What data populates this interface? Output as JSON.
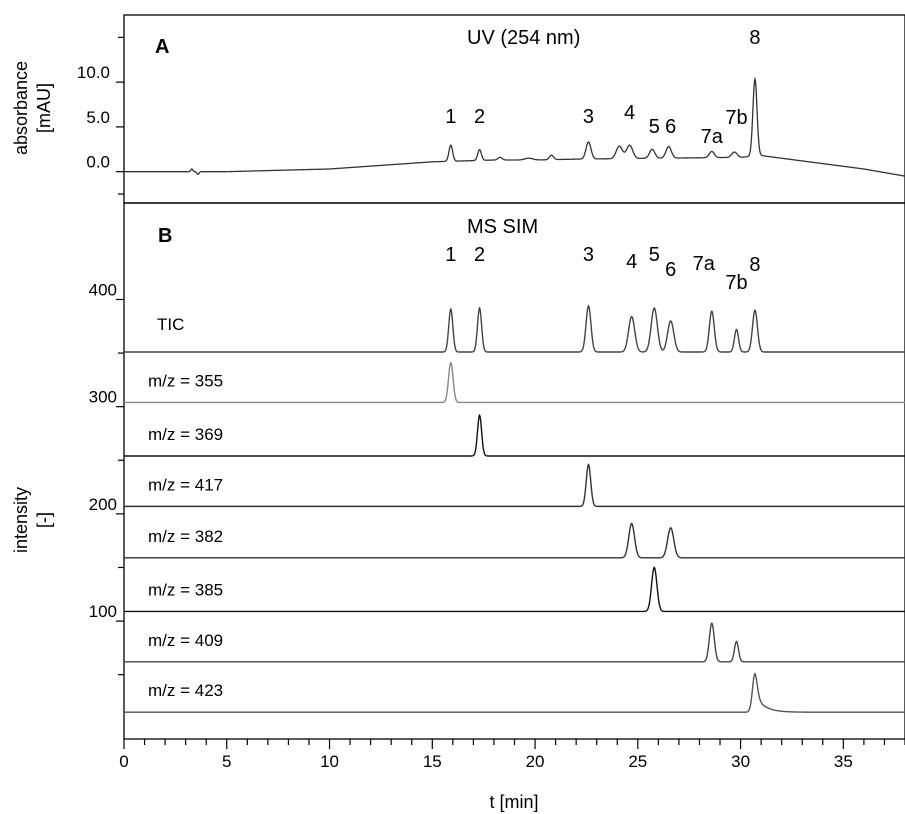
{
  "chart_data": [
    {
      "panel": "A",
      "type": "line",
      "title": "UV (254 nm)",
      "ylabel": "absorbance [mAU]",
      "ylabel_lines": [
        "absorbance",
        "[mAU]"
      ],
      "xlabel": "t [min]",
      "xlim": [
        0,
        38
      ],
      "ylim": [
        -3.5,
        17.5
      ],
      "y_ticks": [
        "0.0",
        "5.0",
        "10.0"
      ],
      "y_tick_values": [
        0,
        5,
        10
      ],
      "peak_labels": [
        {
          "label": "1",
          "x": 15.9
        },
        {
          "label": "2",
          "x": 17.3
        },
        {
          "label": "3",
          "x": 22.6
        },
        {
          "label": "4",
          "x": 24.6
        },
        {
          "label": "5",
          "x": 25.8
        },
        {
          "label": "6",
          "x": 26.6
        },
        {
          "label": "7a",
          "x": 28.6
        },
        {
          "label": "7b",
          "x": 29.8
        },
        {
          "label": "8",
          "x": 30.7
        }
      ],
      "series": [
        {
          "peaks": [
            {
              "t": 3.3,
              "h": 0.3,
              "w": 0.05
            },
            {
              "t": 3.6,
              "h": -0.3,
              "w": 0.05
            },
            {
              "t": 15.9,
              "h": 1.8,
              "w": 0.09
            },
            {
              "t": 17.3,
              "h": 1.2,
              "w": 0.09
            },
            {
              "t": 18.3,
              "h": 0.3,
              "w": 0.1
            },
            {
              "t": 19.7,
              "h": 0.2,
              "w": 0.2
            },
            {
              "t": 20.8,
              "h": 0.5,
              "w": 0.1
            },
            {
              "t": 22.6,
              "h": 1.9,
              "w": 0.12
            },
            {
              "t": 24.1,
              "h": 1.4,
              "w": 0.15
            },
            {
              "t": 24.6,
              "h": 1.5,
              "w": 0.15
            },
            {
              "t": 25.7,
              "h": 1.0,
              "w": 0.13
            },
            {
              "t": 26.5,
              "h": 1.3,
              "w": 0.13
            },
            {
              "t": 28.6,
              "h": 0.7,
              "w": 0.12
            },
            {
              "t": 29.7,
              "h": 0.6,
              "w": 0.13
            },
            {
              "t": 30.7,
              "h": 8.6,
              "w": 0.1
            }
          ],
          "baseline": [
            [
              0,
              0
            ],
            [
              5,
              0
            ],
            [
              10,
              0.3
            ],
            [
              15,
              1.1
            ],
            [
              18,
              1.3
            ],
            [
              20,
              1.3
            ],
            [
              22,
              1.4
            ],
            [
              30,
              1.6
            ],
            [
              31,
              1.8
            ],
            [
              33,
              1.2
            ],
            [
              36,
              0.3
            ],
            [
              38,
              -0.5
            ]
          ]
        }
      ]
    },
    {
      "panel": "B",
      "type": "line",
      "title": "MS SIM",
      "ylabel": "intensity [-]",
      "ylabel_lines": [
        "intensity",
        "[-]"
      ],
      "xlabel": "t [min]",
      "xlim": [
        0,
        38
      ],
      "x_ticks": [
        0,
        5,
        10,
        15,
        20,
        25,
        30,
        35
      ],
      "ylim": [
        -10,
        490
      ],
      "y_ticks": [
        "100",
        "200",
        "300",
        "400"
      ],
      "y_tick_values": [
        100,
        200,
        300,
        400
      ],
      "peak_labels": [
        {
          "label": "1",
          "x": 15.9
        },
        {
          "label": "2",
          "x": 17.3
        },
        {
          "label": "3",
          "x": 22.6
        },
        {
          "label": "4",
          "x": 24.7
        },
        {
          "label": "5",
          "x": 25.8
        },
        {
          "label": "6",
          "x": 26.6
        },
        {
          "label": "7a",
          "x": 28.6
        },
        {
          "label": "7b",
          "x": 29.8
        },
        {
          "label": "8",
          "x": 30.7
        }
      ],
      "series": [
        {
          "name": "TIC",
          "offset": 351,
          "color": "#444444",
          "peaks": [
            {
              "t": 15.9,
              "h": 40,
              "w": 0.1
            },
            {
              "t": 17.3,
              "h": 41,
              "w": 0.1
            },
            {
              "t": 22.6,
              "h": 43,
              "w": 0.12
            },
            {
              "t": 24.7,
              "h": 33,
              "w": 0.15
            },
            {
              "t": 25.8,
              "h": 41,
              "w": 0.15
            },
            {
              "t": 26.6,
              "h": 29,
              "w": 0.15
            },
            {
              "t": 28.6,
              "h": 38,
              "w": 0.12
            },
            {
              "t": 29.8,
              "h": 21,
              "w": 0.1
            },
            {
              "t": 30.7,
              "h": 39,
              "w": 0.12
            }
          ]
        },
        {
          "name": "m/z = 355",
          "offset": 304,
          "color": "#888888",
          "peaks": [
            {
              "t": 15.9,
              "h": 37,
              "w": 0.11
            }
          ]
        },
        {
          "name": "m/z = 369",
          "offset": 254,
          "color": "#111111",
          "peaks": [
            {
              "t": 17.3,
              "h": 38,
              "w": 0.1
            }
          ]
        },
        {
          "name": "m/z = 417",
          "offset": 207,
          "color": "#333333",
          "peaks": [
            {
              "t": 22.6,
              "h": 39,
              "w": 0.11
            }
          ]
        },
        {
          "name": "m/z = 382",
          "offset": 159,
          "color": "#333333",
          "peaks": [
            {
              "t": 24.7,
              "h": 32,
              "w": 0.14
            },
            {
              "t": 26.6,
              "h": 28,
              "w": 0.15
            }
          ]
        },
        {
          "name": "m/z = 385",
          "offset": 109,
          "color": "#111111",
          "peaks": [
            {
              "t": 25.8,
              "h": 41,
              "w": 0.13
            }
          ]
        },
        {
          "name": "m/z = 409",
          "offset": 62,
          "color": "#444444",
          "peaks": [
            {
              "t": 28.6,
              "h": 36,
              "w": 0.12
            },
            {
              "t": 29.8,
              "h": 19,
              "w": 0.1
            }
          ]
        },
        {
          "name": "m/z = 423",
          "offset": 15,
          "color": "#555555",
          "peaks": [
            {
              "t": 30.7,
              "h": 36,
              "w": 0.12,
              "tail": 0.45
            }
          ]
        }
      ]
    }
  ]
}
